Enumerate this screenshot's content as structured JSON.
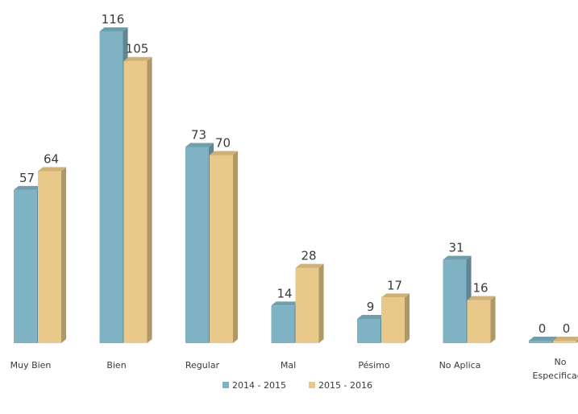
{
  "chart_data": {
    "type": "bar",
    "style": "3d-clustered-column",
    "title": "",
    "xlabel": "",
    "ylabel": "",
    "categories": [
      "Muy Bien",
      "Bien",
      "Regular",
      "Mal",
      "Pésimo",
      "No Aplica",
      "No Especificado"
    ],
    "series": [
      {
        "name": "2014 - 2015",
        "values": [
          57,
          116,
          73,
          14,
          9,
          31,
          0
        ],
        "color": "#7FB3C3"
      },
      {
        "name": "2015 - 2016",
        "values": [
          64,
          105,
          70,
          28,
          17,
          16,
          0
        ],
        "color": "#E9C98A"
      }
    ],
    "ylim": [
      0,
      116
    ],
    "grid": false,
    "legend": "bottom"
  }
}
